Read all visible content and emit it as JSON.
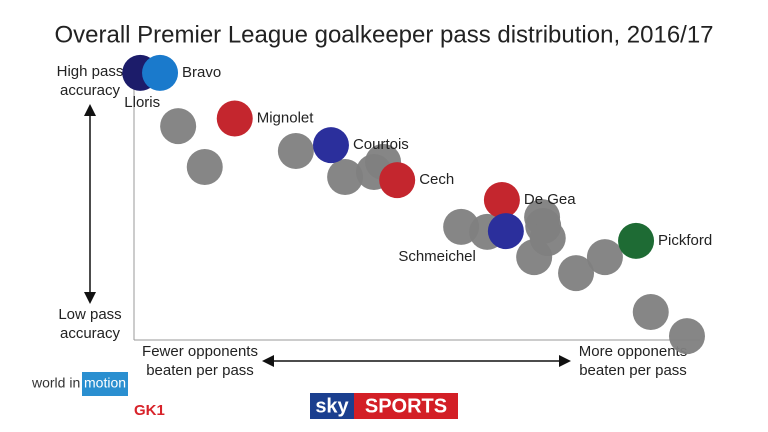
{
  "chart_data": {
    "type": "scatter",
    "title": "Overall Premier League goalkeeper pass distribution, 2016/17",
    "y_label_high": [
      "High pass",
      "accuracy"
    ],
    "y_label_low": [
      "Low pass",
      "accuracy"
    ],
    "x_label_low": [
      "Fewer opponents",
      "beaten per pass"
    ],
    "x_label_high": [
      "More opponents",
      "beaten per pass"
    ],
    "xlim": [
      0,
      100
    ],
    "ylim": [
      0,
      100
    ],
    "x": [
      7.8,
      12.5,
      28.6,
      37.3,
      42.4,
      44,
      57.8,
      62.4,
      72.1,
      72.3,
      73.1,
      70.7,
      78.1,
      83.2,
      91.3,
      97.7,
      1.1,
      4.6,
      17.8,
      34.8,
      46.5,
      65,
      65.7,
      88.7
    ],
    "y": [
      76.4,
      61.8,
      67.5,
      58.2,
      60,
      63.6,
      40.4,
      38.6,
      43.9,
      40.7,
      36.4,
      29.6,
      23.9,
      29.6,
      10,
      1.4,
      95.4,
      95.4,
      79.1,
      69.6,
      57.1,
      50,
      38.9,
      35.4
    ],
    "labels": [
      null,
      null,
      null,
      null,
      null,
      null,
      null,
      null,
      null,
      null,
      null,
      null,
      null,
      null,
      null,
      null,
      "Lloris",
      "Bravo",
      "Mignolet",
      "Courtois",
      "Cech",
      "De Gea",
      "Schmeichel",
      "Pickford"
    ],
    "colors": [
      "#808080",
      "#808080",
      "#808080",
      "#808080",
      "#808080",
      "#808080",
      "#808080",
      "#808080",
      "#808080",
      "#808080",
      "#808080",
      "#808080",
      "#808080",
      "#808080",
      "#808080",
      "#808080",
      "#1c1c6a",
      "#1a7acc",
      "#c4262e",
      "#2b2f9c",
      "#c4262e",
      "#c4262e",
      "#2b2f9c",
      "#1e6b34"
    ]
  },
  "branding": {
    "world": "world in",
    "motion": "motion",
    "gk": "GK1",
    "sky": "sky",
    "sports": "SPORTS"
  }
}
